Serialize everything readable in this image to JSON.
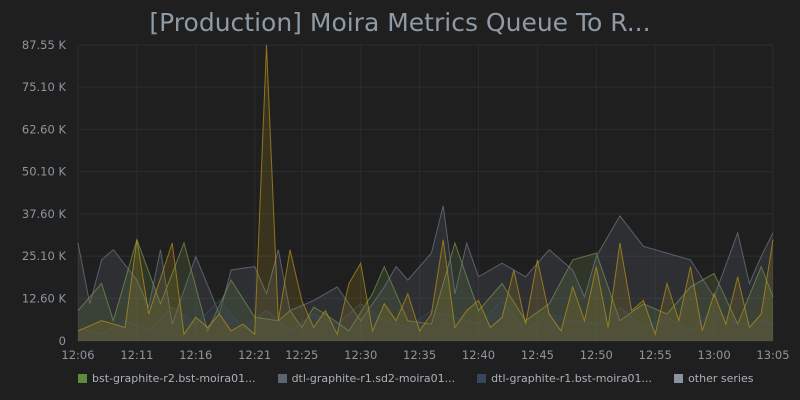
{
  "panel": {
    "title": "[Production] Moira Metrics Queue To R..."
  },
  "legend": {
    "items": [
      {
        "label": "bst-graphite-r2.bst-moira01...",
        "color": "#5e8a3c"
      },
      {
        "label": "dtl-graphite-r1.sd2-moira01...",
        "color": "#5c6670"
      },
      {
        "label": "dtl-graphite-r1.bst-moira01...",
        "color": "#36475c"
      },
      {
        "label": "other series",
        "color": "#8a949e"
      }
    ]
  },
  "chart_data": {
    "type": "area",
    "title": "[Production] Moira Metrics Queue To R...",
    "xlabel": "",
    "ylabel": "",
    "y_ticks": [
      "0",
      "12.60 K",
      "25.10 K",
      "37.60 K",
      "50.10 K",
      "62.60 K",
      "75.10 K",
      "87.55 K"
    ],
    "y_tick_values": [
      0,
      12600,
      25100,
      37600,
      50100,
      62600,
      75100,
      87550
    ],
    "ylim": [
      0,
      87550
    ],
    "x_ticks": [
      "12:06",
      "12:11",
      "12:16",
      "12:21",
      "12:25",
      "12:30",
      "12:35",
      "12:40",
      "12:45",
      "12:50",
      "12:55",
      "13:00",
      "13:05"
    ],
    "x_tick_minutes": [
      0,
      5,
      10,
      15,
      19,
      24,
      29,
      34,
      39,
      44,
      49,
      54,
      59
    ],
    "x_range_minutes": [
      0,
      59
    ],
    "grid": true,
    "legend_position": "bottom",
    "series": [
      {
        "name": "bst-graphite-r2.bst-moira01...",
        "color": "#7a9a4a",
        "x": [
          0,
          2,
          3,
          5,
          7,
          9,
          11,
          13,
          15,
          17,
          18,
          19,
          20,
          21,
          23,
          25,
          26,
          28,
          30,
          32,
          34,
          36,
          38,
          40,
          42,
          44,
          46,
          48,
          50,
          52,
          54,
          56,
          58,
          59
        ],
        "values": [
          9000,
          17000,
          6000,
          30000,
          11000,
          29000,
          3000,
          18000,
          7000,
          6000,
          9000,
          4000,
          10000,
          8000,
          3000,
          14000,
          22000,
          6000,
          5000,
          29000,
          9000,
          17000,
          6000,
          11000,
          24000,
          26000,
          6000,
          11000,
          8000,
          16000,
          20000,
          5000,
          22000,
          13000
        ]
      },
      {
        "name": "dtl-graphite-r1.sd2-moira01...",
        "color": "#6f7b84",
        "x": [
          0,
          1,
          2,
          3,
          5,
          6,
          7,
          8,
          10,
          12,
          13,
          15,
          16,
          17,
          18,
          20,
          22,
          24,
          26,
          27,
          28,
          30,
          31,
          32,
          33,
          34,
          36,
          38,
          40,
          42,
          43,
          44,
          46,
          48,
          50,
          52,
          54,
          56,
          57,
          58,
          59
        ],
        "values": [
          29000,
          11000,
          24000,
          27000,
          18000,
          10000,
          27000,
          5000,
          25000,
          8000,
          21000,
          22000,
          14000,
          27000,
          9000,
          12000,
          16000,
          6000,
          16000,
          22000,
          18000,
          26000,
          40000,
          14000,
          29000,
          19000,
          23000,
          19000,
          27000,
          21000,
          13000,
          25000,
          37000,
          28000,
          26000,
          24000,
          13000,
          32000,
          17000,
          25000,
          32000
        ]
      },
      {
        "name": "dtl-graphite-r1.bst-moira01...",
        "color": "#3c4f66",
        "x": [
          0,
          2,
          4,
          6,
          8,
          10,
          12,
          14,
          16,
          18,
          20,
          22,
          24,
          26,
          28,
          30,
          32,
          34,
          36,
          38,
          40,
          42,
          44,
          46,
          48,
          50,
          52,
          54,
          56,
          58,
          59
        ],
        "values": [
          4000,
          2000,
          6000,
          3000,
          10000,
          5000,
          12000,
          4000,
          9000,
          3000,
          8000,
          5000,
          11000,
          6000,
          4000,
          9000,
          7000,
          5000,
          12000,
          3000,
          8000,
          6000,
          5000,
          10000,
          4000,
          7000,
          3000,
          9000,
          5000,
          6000,
          5000
        ]
      },
      {
        "name": "other series",
        "color": "#b8941e",
        "x": [
          0,
          2,
          4,
          5,
          6,
          8,
          9,
          10,
          11,
          12,
          13,
          14,
          15,
          16,
          17,
          18,
          19,
          20,
          21,
          22,
          23,
          24,
          25,
          26,
          27,
          28,
          29,
          30,
          31,
          32,
          33,
          34,
          35,
          36,
          37,
          38,
          39,
          40,
          41,
          42,
          43,
          44,
          45,
          46,
          47,
          48,
          49,
          50,
          51,
          52,
          53,
          54,
          55,
          56,
          57,
          58,
          59
        ],
        "values": [
          3000,
          6000,
          4000,
          30000,
          8000,
          29000,
          2000,
          7000,
          4000,
          8000,
          3000,
          5000,
          2000,
          87500,
          6000,
          27000,
          12000,
          4000,
          9000,
          2000,
          17000,
          23000,
          3000,
          11000,
          6000,
          14000,
          3000,
          8000,
          30000,
          4000,
          9000,
          12000,
          4000,
          7000,
          21000,
          5000,
          24000,
          8000,
          3000,
          16000,
          6000,
          22000,
          4000,
          29000,
          9000,
          12000,
          2000,
          17000,
          6000,
          22000,
          3000,
          14000,
          5000,
          19000,
          4000,
          8000,
          30000
        ]
      }
    ]
  }
}
